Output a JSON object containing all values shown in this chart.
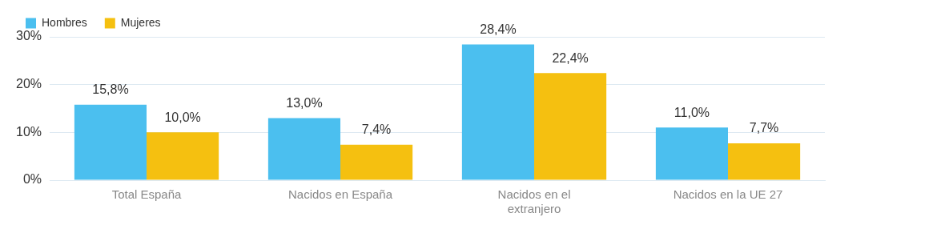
{
  "chart_data": {
    "type": "bar",
    "categories": [
      "Total España",
      "Nacidos en España",
      "Nacidos en el extranjero",
      "Nacidos en la UE 27"
    ],
    "series": [
      {
        "name": "Hombres",
        "color": "#4bbfef",
        "values": [
          15.8,
          13.0,
          28.4,
          11.0
        ],
        "value_labels": [
          "15,8%",
          "13,0%",
          "28,4%",
          "11,0%"
        ]
      },
      {
        "name": "Mujeres",
        "color": "#f5c010",
        "values": [
          10.0,
          7.4,
          22.4,
          7.7
        ],
        "value_labels": [
          "10,0%",
          "7,4%",
          "22,4%",
          "7,7%"
        ]
      }
    ],
    "ylim": [
      0,
      30
    ],
    "yticks": [
      {
        "value": 0,
        "label": "0%"
      },
      {
        "value": 10,
        "label": "10%"
      },
      {
        "value": 20,
        "label": "20%"
      },
      {
        "value": 30,
        "label": "30%"
      }
    ],
    "grid": "y",
    "legend": "top left"
  }
}
